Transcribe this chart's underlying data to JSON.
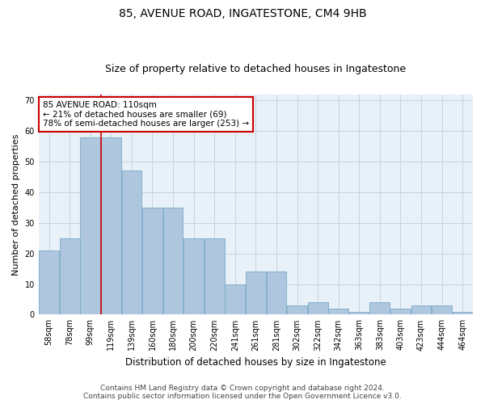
{
  "title1": "85, AVENUE ROAD, INGATESTONE, CM4 9HB",
  "title2": "Size of property relative to detached houses in Ingatestone",
  "xlabel": "Distribution of detached houses by size in Ingatestone",
  "ylabel": "Number of detached properties",
  "categories": [
    "58sqm",
    "78sqm",
    "99sqm",
    "119sqm",
    "139sqm",
    "160sqm",
    "180sqm",
    "200sqm",
    "220sqm",
    "241sqm",
    "261sqm",
    "281sqm",
    "302sqm",
    "322sqm",
    "342sqm",
    "363sqm",
    "383sqm",
    "403sqm",
    "423sqm",
    "444sqm",
    "464sqm"
  ],
  "values": [
    21,
    25,
    58,
    58,
    47,
    35,
    35,
    25,
    25,
    10,
    14,
    14,
    3,
    4,
    2,
    1,
    4,
    2,
    3,
    3,
    1
  ],
  "bar_color": "#aec6de",
  "bar_edge_color": "#7aaac8",
  "highlight_color": "#cc0000",
  "highlight_bar_index": 2,
  "ylim": [
    0,
    72
  ],
  "yticks": [
    0,
    10,
    20,
    30,
    40,
    50,
    60,
    70
  ],
  "annotation_text": "85 AVENUE ROAD: 110sqm\n← 21% of detached houses are smaller (69)\n78% of semi-detached houses are larger (253) →",
  "annotation_box_color": "#ffffff",
  "annotation_box_edge": "#cc0000",
  "footer1": "Contains HM Land Registry data © Crown copyright and database right 2024.",
  "footer2": "Contains public sector information licensed under the Open Government Licence v3.0.",
  "background_color": "#ffffff",
  "plot_bg_color": "#e8f0f8",
  "grid_color": "#c8d4e0",
  "title1_fontsize": 10,
  "title2_fontsize": 9,
  "xlabel_fontsize": 8.5,
  "ylabel_fontsize": 8,
  "tick_fontsize": 7,
  "annotation_fontsize": 7.5,
  "footer_fontsize": 6.5
}
